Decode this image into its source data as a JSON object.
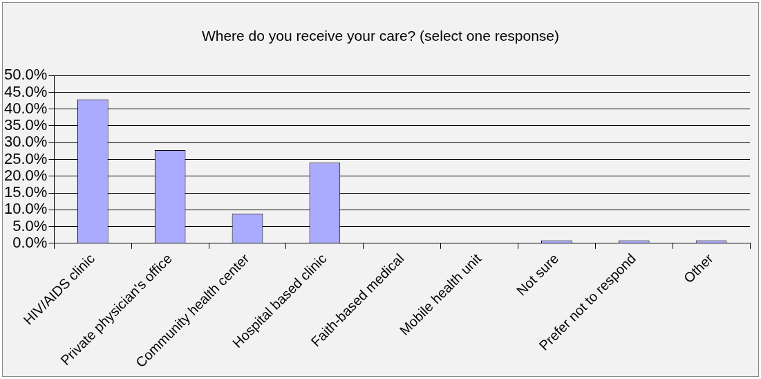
{
  "chart_data": {
    "type": "bar",
    "title": "Where do you receive your care? (select one response)",
    "categories": [
      "HIV/AIDS clinic",
      "Private physician's office",
      "Community health center",
      "Hospital based clinic",
      "Faith-based medical",
      "Mobile health unit",
      "Not sure",
      "Prefer not to respond",
      "Other"
    ],
    "values": [
      42.9,
      27.8,
      8.9,
      24.0,
      0,
      0,
      0.9,
      0.9,
      0.9
    ],
    "color": "#aaaaff",
    "ylim": [
      0,
      50
    ],
    "yticks": [
      {
        "value": 0,
        "label": "0.0%"
      },
      {
        "value": 5,
        "label": "5.0%"
      },
      {
        "value": 10,
        "label": "10.0%"
      },
      {
        "value": 15,
        "label": "15.0%"
      },
      {
        "value": 20,
        "label": "20.0%"
      },
      {
        "value": 25,
        "label": "25.0%"
      },
      {
        "value": 30,
        "label": "30.0%"
      },
      {
        "value": 35,
        "label": "35.0%"
      },
      {
        "value": 40,
        "label": "40.0%"
      },
      {
        "value": 45,
        "label": "45.0%"
      },
      {
        "value": 50,
        "label": "50.0%"
      }
    ],
    "grid": "y",
    "legend": false
  }
}
